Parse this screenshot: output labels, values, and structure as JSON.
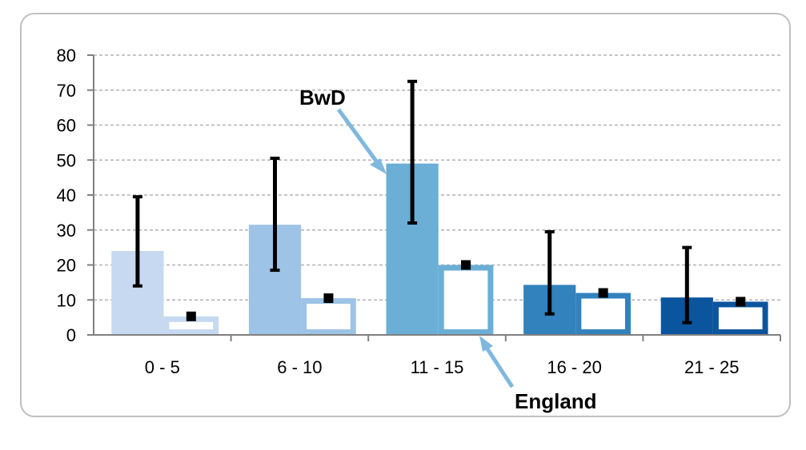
{
  "chart_data": {
    "type": "bar",
    "categories": [
      "0 - 5",
      "6 - 10",
      "11 - 15",
      "16 - 20",
      "21 - 25"
    ],
    "ylim": [
      0,
      80
    ],
    "yticks": [
      0,
      10,
      20,
      30,
      40,
      50,
      60,
      70,
      80
    ],
    "grid": true,
    "series": [
      {
        "name": "BwD",
        "values": [
          24,
          31.5,
          49,
          14.3,
          10.7
        ],
        "error_low": [
          14,
          18.5,
          32,
          6,
          3.5
        ],
        "error_high": [
          39.5,
          50.5,
          72.5,
          29.5,
          25
        ],
        "colors": [
          "#c6d9f1",
          "#9dc3e6",
          "#6baed6",
          "#3182bd",
          "#0b559f"
        ]
      },
      {
        "name": "England",
        "values": [
          5.3,
          10.5,
          20,
          12,
          9.5
        ],
        "colors": [
          "#c6d9f1",
          "#9dc3e6",
          "#6baed6",
          "#3182bd",
          "#0b559f"
        ]
      }
    ],
    "annotations": [
      "BwD",
      "England"
    ]
  }
}
